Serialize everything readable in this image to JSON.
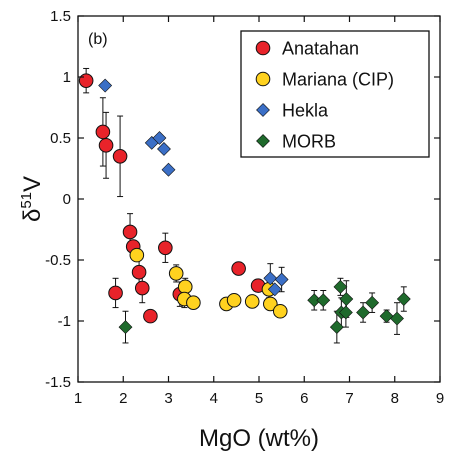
{
  "chart_data": {
    "type": "scatter",
    "panel_label": "(b)",
    "xlabel": "MgO (wt%)",
    "ylabel": {
      "main": "δ",
      "sup": "51",
      "tail": "V"
    },
    "xlim": [
      1,
      9
    ],
    "ylim": [
      -1.5,
      1.5
    ],
    "x_ticks": [
      1,
      2,
      3,
      4,
      5,
      6,
      7,
      8,
      9
    ],
    "y_ticks": [
      1.5,
      1,
      0.5,
      0,
      -0.5,
      -1,
      -1.5
    ],
    "y_tick_labels": [
      "1.5",
      "1",
      "0.5",
      "0",
      "-0.5",
      "-1",
      "-1.5"
    ],
    "grid": false,
    "legend_position": "top-right",
    "series": [
      {
        "name": "Anatahan",
        "marker": "circle",
        "color": "#e8232a",
        "points": [
          {
            "x": 1.18,
            "y": 0.97,
            "err": 0.1
          },
          {
            "x": 1.55,
            "y": 0.55,
            "err": 0.28
          },
          {
            "x": 1.62,
            "y": 0.44,
            "err": 0.27
          },
          {
            "x": 1.93,
            "y": 0.35,
            "err": 0.33
          },
          {
            "x": 2.15,
            "y": -0.27,
            "err": 0.15
          },
          {
            "x": 2.22,
            "y": -0.39,
            "err": 0.0
          },
          {
            "x": 2.35,
            "y": -0.6,
            "err": 0.12
          },
          {
            "x": 2.42,
            "y": -0.73,
            "err": 0.12
          },
          {
            "x": 1.83,
            "y": -0.77,
            "err": 0.12
          },
          {
            "x": 2.6,
            "y": -0.96,
            "err": 0.0
          },
          {
            "x": 2.93,
            "y": -0.4,
            "err": 0.12
          },
          {
            "x": 3.25,
            "y": -0.78,
            "err": 0.1
          },
          {
            "x": 4.55,
            "y": -0.57,
            "err": 0.05
          },
          {
            "x": 4.98,
            "y": -0.71,
            "err": 0.05
          }
        ]
      },
      {
        "name": "Mariana (CIP)",
        "marker": "circle",
        "color": "#ffd21f",
        "points": [
          {
            "x": 2.3,
            "y": -0.46,
            "err": 0.0
          },
          {
            "x": 3.17,
            "y": -0.61,
            "err": 0.07
          },
          {
            "x": 3.37,
            "y": -0.72,
            "err": 0.07
          },
          {
            "x": 3.35,
            "y": -0.82,
            "err": 0.07
          },
          {
            "x": 3.55,
            "y": -0.85,
            "err": 0.05
          },
          {
            "x": 4.28,
            "y": -0.86,
            "err": 0.05
          },
          {
            "x": 4.45,
            "y": -0.83,
            "err": 0.05
          },
          {
            "x": 4.85,
            "y": -0.84,
            "err": 0.05
          },
          {
            "x": 5.22,
            "y": -0.74,
            "err": 0.07
          },
          {
            "x": 5.25,
            "y": -0.86,
            "err": 0.05
          },
          {
            "x": 5.47,
            "y": -0.92,
            "err": 0.05
          }
        ]
      },
      {
        "name": "Hekla",
        "marker": "diamond",
        "color": "#3b6fc6",
        "points": [
          {
            "x": 1.6,
            "y": 0.93,
            "err": 0.0
          },
          {
            "x": 2.63,
            "y": 0.46,
            "err": 0.0
          },
          {
            "x": 2.8,
            "y": 0.5,
            "err": 0.0
          },
          {
            "x": 2.9,
            "y": 0.41,
            "err": 0.0
          },
          {
            "x": 3.0,
            "y": 0.24,
            "err": 0.0
          },
          {
            "x": 5.25,
            "y": -0.65,
            "err": 0.12
          },
          {
            "x": 5.5,
            "y": -0.66,
            "err": 0.1
          },
          {
            "x": 5.35,
            "y": -0.74,
            "err": 0.0
          }
        ]
      },
      {
        "name": "MORB",
        "marker": "diamond",
        "color": "#1f6a2c",
        "points": [
          {
            "x": 2.05,
            "y": -1.05,
            "err": 0.13
          },
          {
            "x": 6.22,
            "y": -0.83,
            "err": 0.08
          },
          {
            "x": 6.42,
            "y": -0.83,
            "err": 0.08
          },
          {
            "x": 6.72,
            "y": -1.05,
            "err": 0.13
          },
          {
            "x": 6.8,
            "y": -0.72,
            "err": 0.07
          },
          {
            "x": 6.82,
            "y": -0.93,
            "err": 0.12
          },
          {
            "x": 6.92,
            "y": -0.93,
            "err": 0.12
          },
          {
            "x": 6.93,
            "y": -0.82,
            "err": 0.15
          },
          {
            "x": 7.3,
            "y": -0.93,
            "err": 0.08
          },
          {
            "x": 7.5,
            "y": -0.85,
            "err": 0.08
          },
          {
            "x": 7.82,
            "y": -0.96,
            "err": 0.05
          },
          {
            "x": 8.05,
            "y": -0.98,
            "err": 0.13
          },
          {
            "x": 8.2,
            "y": -0.82,
            "err": 0.1
          }
        ]
      }
    ]
  }
}
